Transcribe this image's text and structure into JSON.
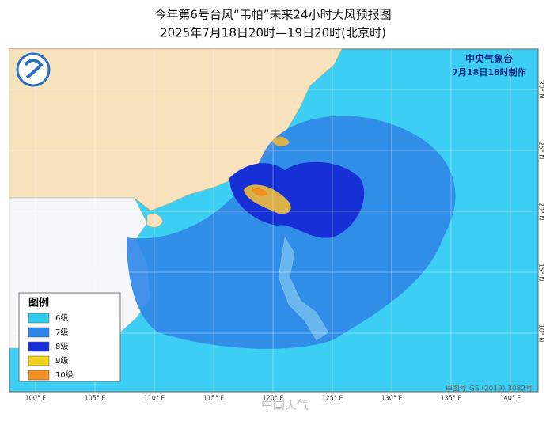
{
  "header": {
    "title": "今年第6号台风“韦帕”未来24小时大风预报图",
    "subtitle": "2025年7月18日20时—19日20时(北京时)"
  },
  "agency": {
    "name": "中央气象台",
    "issued": "7月18日18时制作"
  },
  "legend": {
    "title": "图例",
    "items": [
      {
        "label": "6级",
        "color": "#2ccbf2"
      },
      {
        "label": "7级",
        "color": "#2f86e8"
      },
      {
        "label": "8级",
        "color": "#1630d6"
      },
      {
        "label": "9级",
        "color": "#f2d21a"
      },
      {
        "label": "10级",
        "color": "#f0901e"
      }
    ]
  },
  "map": {
    "lon_labels": [
      "100° E",
      "105° E",
      "110° E",
      "115° E",
      "120° E",
      "125° E",
      "130° E",
      "135° E",
      "140° E"
    ],
    "lat_labels": [
      "30° N",
      "25° N",
      "20° N",
      "15° N",
      "10° N"
    ],
    "approval": "审图号:GS (2019) 3082号"
  },
  "watermark": "中国天气"
}
